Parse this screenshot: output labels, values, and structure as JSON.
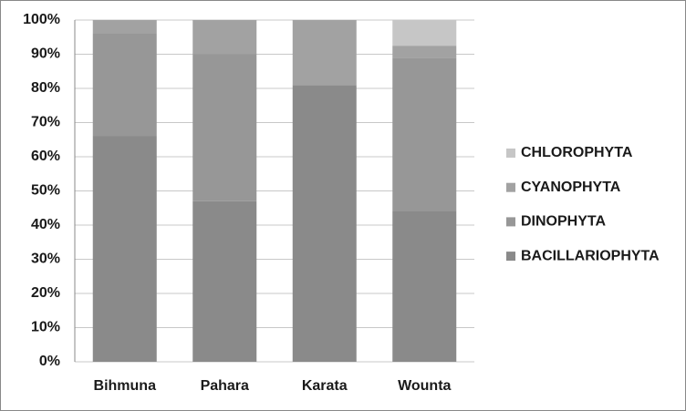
{
  "chart_data": {
    "type": "stacked-bar",
    "categories": [
      "Bihmuna",
      "Pahara",
      "Karata",
      "Wounta"
    ],
    "series": [
      {
        "name": "BACILLARIOPHYTA",
        "color": "#8a8a8a",
        "values": [
          66,
          47,
          81,
          44
        ]
      },
      {
        "name": "DINOPHYTA",
        "color": "#979797",
        "values": [
          30,
          43,
          0,
          45
        ]
      },
      {
        "name": "CYANOPHYTA",
        "color": "#a2a2a2",
        "values": [
          4,
          10,
          19,
          3.5
        ]
      },
      {
        "name": "CHLOROPHYTA",
        "color": "#c6c6c6",
        "values": [
          0,
          0,
          0,
          7.5
        ]
      }
    ],
    "ylim": [
      0,
      100
    ],
    "yticks": [
      {
        "value": 0,
        "label": "0%"
      },
      {
        "value": 10,
        "label": "10%"
      },
      {
        "value": 20,
        "label": "20%"
      },
      {
        "value": 30,
        "label": "30%"
      },
      {
        "value": 40,
        "label": "40%"
      },
      {
        "value": 50,
        "label": "50%"
      },
      {
        "value": 60,
        "label": "60%"
      },
      {
        "value": 70,
        "label": "70%"
      },
      {
        "value": 80,
        "label": "80%"
      },
      {
        "value": 90,
        "label": "90%"
      },
      {
        "value": 100,
        "label": "100%"
      }
    ],
    "grid": true,
    "legend": "right"
  }
}
